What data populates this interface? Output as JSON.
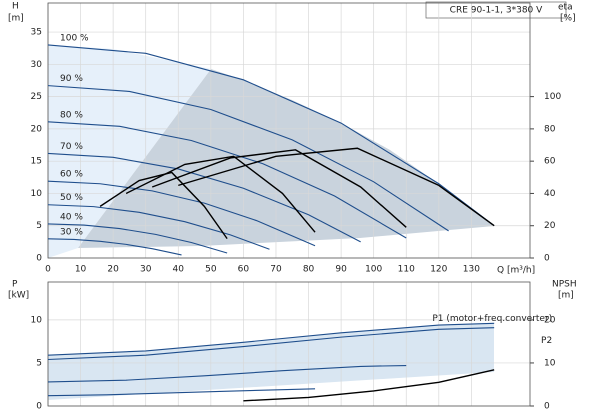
{
  "chart_data": [
    {
      "type": "line",
      "title": "CRE 90-1-1, 3*380 V",
      "y_label": "H",
      "y_unit": "[m]",
      "y2_label": "eta",
      "y2_unit": "[%]",
      "x_label": "Q [m³/h]",
      "xlim": [
        0,
        148
      ],
      "xticks": [
        0,
        10,
        20,
        30,
        40,
        50,
        60,
        70,
        80,
        90,
        100,
        110,
        120,
        130
      ],
      "ylim": [
        0,
        39.5
      ],
      "yticks": [
        0,
        5,
        10,
        15,
        20,
        25,
        30,
        35
      ],
      "y2lim": [
        0,
        158
      ],
      "y2ticks": [
        0,
        20,
        40,
        60,
        80,
        100
      ],
      "grid": true,
      "series": [
        {
          "name": "100 %",
          "color": "#1f4e8c",
          "x": [
            0,
            30,
            60,
            90,
            120,
            137
          ],
          "values": [
            33,
            31.7,
            27.6,
            20.9,
            11.5,
            5.0
          ]
        },
        {
          "name": "90 %",
          "color": "#1f4e8c",
          "x": [
            0,
            25,
            50,
            75,
            100,
            123
          ],
          "values": [
            26.7,
            25.8,
            23.0,
            18.3,
            11.8,
            4.2
          ]
        },
        {
          "name": "80 %",
          "color": "#1f4e8c",
          "x": [
            0,
            22,
            44,
            66,
            88,
            110
          ],
          "values": [
            21.1,
            20.4,
            18.2,
            14.6,
            9.6,
            3.1
          ]
        },
        {
          "name": "70 %",
          "color": "#1f4e8c",
          "x": [
            0,
            20,
            40,
            60,
            80,
            96
          ],
          "values": [
            16.2,
            15.6,
            13.8,
            10.8,
            6.7,
            2.5
          ]
        },
        {
          "name": "60 %",
          "color": "#1f4e8c",
          "x": [
            0,
            16,
            32,
            48,
            64,
            82
          ],
          "values": [
            11.9,
            11.5,
            10.4,
            8.5,
            5.8,
            1.9
          ]
        },
        {
          "name": "50 %",
          "color": "#1f4e8c",
          "x": [
            0,
            14,
            28,
            42,
            56,
            68
          ],
          "values": [
            8.25,
            7.96,
            7.08,
            5.62,
            3.58,
            1.36
          ]
        },
        {
          "name": "40 %",
          "color": "#1f4e8c",
          "x": [
            0,
            11,
            22,
            33,
            44,
            55
          ],
          "values": [
            5.28,
            5.1,
            4.56,
            3.66,
            2.4,
            0.77
          ]
        },
        {
          "name": "30 %",
          "color": "#1f4e8c",
          "x": [
            0,
            8,
            16,
            24,
            32,
            41
          ],
          "values": [
            2.97,
            2.87,
            2.59,
            2.11,
            1.44,
            0.47
          ]
        },
        {
          "color": "#000000",
          "axis": "y2",
          "x": [
            40,
            70,
            95,
            120,
            137
          ],
          "values": [
            45,
            63,
            68,
            45,
            20
          ]
        },
        {
          "color": "#000000",
          "axis": "y2",
          "x": [
            32,
            56,
            76,
            96,
            110
          ],
          "values": [
            44,
            62,
            67,
            44,
            19
          ]
        },
        {
          "color": "#000000",
          "axis": "y2",
          "x": [
            24,
            42,
            57,
            72,
            82
          ],
          "values": [
            40,
            58,
            63,
            40,
            16
          ]
        },
        {
          "color": "#000000",
          "axis": "y2",
          "x": [
            16,
            28,
            38,
            48,
            55
          ],
          "values": [
            32,
            48,
            53,
            32,
            12
          ]
        }
      ]
    },
    {
      "type": "line",
      "y_label": "P",
      "y_unit": "[kW]",
      "y2_label": "NPSH",
      "y2_unit": "[m]",
      "xlim": [
        0,
        148
      ],
      "ylim": [
        0,
        14.4
      ],
      "yticks": [
        0,
        5,
        10
      ],
      "y2lim": [
        0,
        28.8
      ],
      "y2ticks": [
        0,
        10,
        20
      ],
      "grid": true,
      "series": [
        {
          "name": "P1 (motor+freq.converter)",
          "color": "#1f4e8c",
          "x": [
            0,
            30,
            60,
            90,
            120,
            137
          ],
          "values": [
            5.9,
            6.4,
            7.4,
            8.5,
            9.4,
            9.6
          ]
        },
        {
          "name": "P2",
          "color": "#1f4e8c",
          "x": [
            0,
            30,
            60,
            90,
            120,
            137
          ],
          "values": [
            5.4,
            5.9,
            6.9,
            8.0,
            8.9,
            9.1
          ]
        },
        {
          "color": "#1f4e8c",
          "x": [
            0,
            24,
            48,
            72,
            96,
            110
          ],
          "values": [
            2.8,
            3.0,
            3.5,
            4.1,
            4.6,
            4.7
          ]
        },
        {
          "color": "#1f4e8c",
          "x": [
            0,
            18,
            36,
            54,
            72,
            82
          ],
          "values": [
            1.2,
            1.3,
            1.5,
            1.7,
            1.9,
            2.0
          ]
        },
        {
          "color": "#000000",
          "axis": "y2",
          "x": [
            60,
            80,
            100,
            120,
            137
          ],
          "values": [
            1.2,
            2.0,
            3.5,
            5.5,
            8.4
          ]
        }
      ]
    }
  ]
}
